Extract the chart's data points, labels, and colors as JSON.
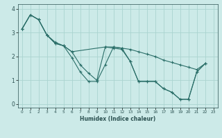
{
  "xlabel": "Humidex (Indice chaleur)",
  "bg_color": "#cceae8",
  "grid_color": "#aad4d0",
  "line_color": "#2a6e68",
  "xlim": [
    -0.5,
    23.5
  ],
  "ylim": [
    -0.15,
    4.2
  ],
  "xticks": [
    0,
    1,
    2,
    3,
    4,
    5,
    6,
    7,
    8,
    9,
    10,
    11,
    12,
    13,
    14,
    15,
    16,
    17,
    18,
    19,
    20,
    21,
    22,
    23
  ],
  "yticks": [
    0,
    1,
    2,
    3,
    4
  ],
  "line1_x": [
    0,
    1,
    2,
    3,
    4,
    5,
    6,
    7,
    8,
    9,
    10,
    11,
    12,
    13,
    14,
    15,
    16,
    17,
    18,
    19,
    20,
    21,
    22
  ],
  "line1_y": [
    3.15,
    3.75,
    3.55,
    2.9,
    2.6,
    2.45,
    1.95,
    1.35,
    0.95,
    0.95,
    1.65,
    2.4,
    2.35,
    1.8,
    0.95,
    0.95,
    0.95,
    0.65,
    0.5,
    0.2,
    0.2,
    1.35,
    1.7
  ],
  "line2_x": [
    0,
    1,
    2,
    3,
    4,
    5,
    6,
    7,
    8,
    9,
    10,
    11,
    12,
    13,
    14,
    15,
    16,
    17,
    18,
    19,
    20,
    21,
    22
  ],
  "line2_y": [
    3.15,
    3.75,
    3.55,
    2.9,
    2.55,
    2.45,
    2.2,
    1.65,
    1.3,
    1.0,
    2.4,
    2.35,
    2.3,
    1.8,
    0.95,
    0.95,
    0.95,
    0.65,
    0.5,
    0.2,
    0.2,
    1.35,
    1.7
  ],
  "line3_x": [
    0,
    1,
    2,
    3,
    4,
    5,
    6,
    10,
    11,
    12,
    13,
    14,
    15,
    16,
    17,
    18,
    19,
    20,
    21,
    22
  ],
  "line3_y": [
    3.15,
    3.75,
    3.55,
    2.9,
    2.55,
    2.45,
    2.2,
    2.4,
    2.4,
    2.35,
    2.3,
    2.2,
    2.1,
    2.0,
    1.85,
    1.75,
    1.65,
    1.55,
    1.45,
    1.7
  ]
}
